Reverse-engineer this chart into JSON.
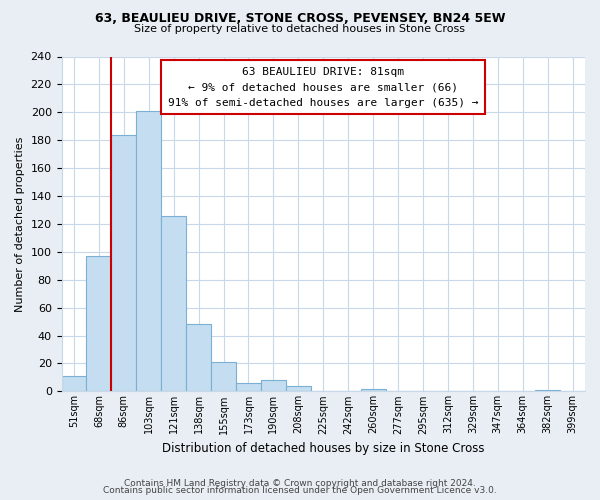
{
  "title1": "63, BEAULIEU DRIVE, STONE CROSS, PEVENSEY, BN24 5EW",
  "title2": "Size of property relative to detached houses in Stone Cross",
  "xlabel": "Distribution of detached houses by size in Stone Cross",
  "ylabel": "Number of detached properties",
  "bar_labels": [
    "51sqm",
    "68sqm",
    "86sqm",
    "103sqm",
    "121sqm",
    "138sqm",
    "155sqm",
    "173sqm",
    "190sqm",
    "208sqm",
    "225sqm",
    "242sqm",
    "260sqm",
    "277sqm",
    "295sqm",
    "312sqm",
    "329sqm",
    "347sqm",
    "364sqm",
    "382sqm",
    "399sqm"
  ],
  "bar_values": [
    11,
    97,
    184,
    201,
    126,
    48,
    21,
    6,
    8,
    4,
    0,
    0,
    2,
    0,
    0,
    0,
    0,
    0,
    0,
    1,
    0
  ],
  "bar_color": "#c5ddf0",
  "bar_edge_color": "#7ab0d4",
  "vline_color": "#cc0000",
  "vline_bar_index": 2,
  "annotation_title": "63 BEAULIEU DRIVE: 81sqm",
  "annotation_line1": "← 9% of detached houses are smaller (66)",
  "annotation_line2": "91% of semi-detached houses are larger (635) →",
  "annotation_box_color": "#ffffff",
  "annotation_box_edge": "#cc0000",
  "ylim": [
    0,
    240
  ],
  "yticks": [
    0,
    20,
    40,
    60,
    80,
    100,
    120,
    140,
    160,
    180,
    200,
    220,
    240
  ],
  "footer1": "Contains HM Land Registry data © Crown copyright and database right 2024.",
  "footer2": "Contains public sector information licensed under the Open Government Licence v3.0.",
  "bg_color": "#e8eef4",
  "plot_bg_color": "#ffffff"
}
